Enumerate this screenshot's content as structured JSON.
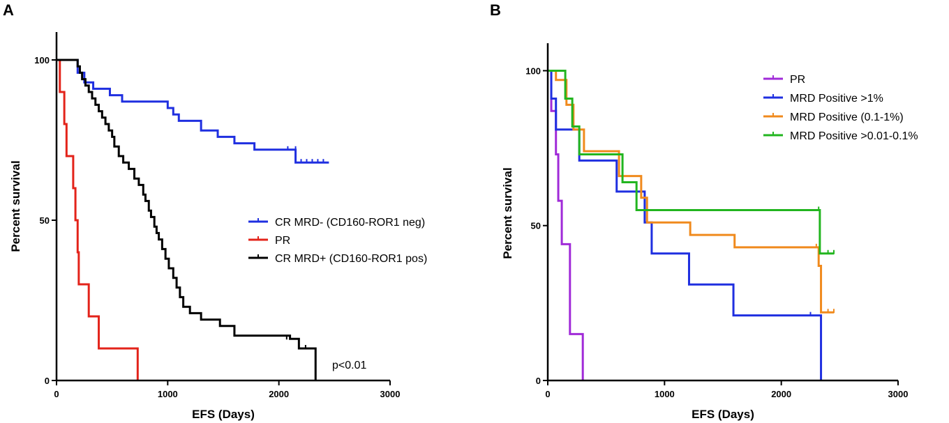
{
  "chart_data": [
    {
      "type": "line",
      "chart_kind": "kaplan-meier survival (step)",
      "panel": "A",
      "title": "",
      "xlabel": "EFS (Days)",
      "ylabel": "Percent survival",
      "xlim": [
        0,
        3000
      ],
      "ylim": [
        0,
        110
      ],
      "xticks": [
        0,
        1000,
        2000,
        3000
      ],
      "yticks": [
        0,
        50,
        100
      ],
      "xtick_labels": [
        "0",
        "1000",
        "2000",
        "3000"
      ],
      "ytick_labels": [
        "0",
        "50",
        "100"
      ],
      "legend_position": "right-middle",
      "annotation": "p<0.01",
      "series": [
        {
          "name": "CR MRD- (CD160-ROR1 neg)",
          "color": "#1f2fe0",
          "steps": [
            [
              0,
              100
            ],
            [
              190,
              96
            ],
            [
              250,
              93
            ],
            [
              330,
              91
            ],
            [
              480,
              89
            ],
            [
              590,
              87
            ],
            [
              1000,
              85
            ],
            [
              1050,
              83
            ],
            [
              1100,
              81
            ],
            [
              1300,
              78
            ],
            [
              1450,
              76
            ],
            [
              1600,
              74
            ],
            [
              1780,
              72
            ],
            [
              2150,
              68
            ],
            [
              2450,
              68
            ]
          ],
          "censored": [
            [
              2080,
              72
            ],
            [
              2150,
              72
            ],
            [
              2200,
              68
            ],
            [
              2250,
              68
            ],
            [
              2300,
              68
            ],
            [
              2350,
              68
            ],
            [
              2400,
              68
            ]
          ]
        },
        {
          "name": "PR",
          "color": "#e3231a",
          "steps": [
            [
              0,
              100
            ],
            [
              30,
              90
            ],
            [
              70,
              80
            ],
            [
              90,
              70
            ],
            [
              150,
              60
            ],
            [
              170,
              50
            ],
            [
              190,
              40
            ],
            [
              200,
              30
            ],
            [
              290,
              20
            ],
            [
              380,
              10
            ],
            [
              730,
              0
            ]
          ],
          "censored": []
        },
        {
          "name": "CR MRD+ (CD160-ROR1 pos)",
          "color": "#000000",
          "steps": [
            [
              0,
              100
            ],
            [
              190,
              98
            ],
            [
              210,
              96
            ],
            [
              230,
              94
            ],
            [
              260,
              92
            ],
            [
              290,
              90
            ],
            [
              320,
              88
            ],
            [
              350,
              86
            ],
            [
              380,
              84
            ],
            [
              410,
              82
            ],
            [
              440,
              80
            ],
            [
              470,
              78
            ],
            [
              500,
              76
            ],
            [
              520,
              73
            ],
            [
              560,
              70
            ],
            [
              600,
              68
            ],
            [
              650,
              66
            ],
            [
              700,
              63
            ],
            [
              740,
              61
            ],
            [
              780,
              58
            ],
            [
              800,
              56
            ],
            [
              830,
              53
            ],
            [
              850,
              51
            ],
            [
              880,
              48
            ],
            [
              900,
              46
            ],
            [
              920,
              44
            ],
            [
              950,
              41
            ],
            [
              980,
              38
            ],
            [
              1010,
              35
            ],
            [
              1050,
              32
            ],
            [
              1080,
              29
            ],
            [
              1110,
              26
            ],
            [
              1140,
              23
            ],
            [
              1200,
              21
            ],
            [
              1300,
              19
            ],
            [
              1470,
              17
            ],
            [
              1600,
              14
            ],
            [
              2100,
              13
            ],
            [
              2180,
              10
            ],
            [
              2330,
              0
            ]
          ],
          "censored": [
            [
              2070,
              13
            ],
            [
              2240,
              10
            ]
          ]
        }
      ]
    },
    {
      "type": "line",
      "chart_kind": "kaplan-meier survival (step)",
      "panel": "B",
      "title": "",
      "xlabel": "EFS (Days)",
      "ylabel": "Percent survival",
      "xlim": [
        0,
        3000
      ],
      "ylim": [
        0,
        110
      ],
      "xticks": [
        0,
        1000,
        2000,
        3000
      ],
      "yticks": [
        0,
        50,
        100
      ],
      "xtick_labels": [
        "0",
        "1000",
        "2000",
        "3000"
      ],
      "ytick_labels": [
        "0",
        "50",
        "100"
      ],
      "legend_position": "top-right",
      "series": [
        {
          "name": "PR",
          "color": "#a02ad8",
          "steps": [
            [
              0,
              100
            ],
            [
              30,
              87
            ],
            [
              70,
              73
            ],
            [
              90,
              58
            ],
            [
              120,
              44
            ],
            [
              190,
              15
            ],
            [
              300,
              0
            ]
          ],
          "censored": []
        },
        {
          "name": "MRD Positive >1%",
          "color": "#1f2fe0",
          "steps": [
            [
              0,
              100
            ],
            [
              30,
              91
            ],
            [
              70,
              81
            ],
            [
              270,
              71
            ],
            [
              590,
              61
            ],
            [
              830,
              51
            ],
            [
              890,
              41
            ],
            [
              1210,
              31
            ],
            [
              1590,
              21
            ],
            [
              2340,
              0
            ]
          ],
          "censored": [
            [
              2250,
              21
            ]
          ]
        },
        {
          "name": "MRD Positive (0.1-1%)",
          "color": "#f08a1d",
          "steps": [
            [
              0,
              100
            ],
            [
              70,
              97
            ],
            [
              160,
              89
            ],
            [
              220,
              81
            ],
            [
              310,
              74
            ],
            [
              610,
              66
            ],
            [
              800,
              59
            ],
            [
              850,
              51
            ],
            [
              1220,
              47
            ],
            [
              1600,
              43
            ],
            [
              2320,
              37
            ],
            [
              2340,
              22
            ],
            [
              2450,
              22
            ]
          ],
          "censored": [
            [
              2300,
              43
            ],
            [
              2400,
              22
            ],
            [
              2450,
              22
            ]
          ]
        },
        {
          "name": "MRD Positive >0.01-0.1%",
          "color": "#22b51f",
          "steps": [
            [
              0,
              100
            ],
            [
              150,
              91
            ],
            [
              210,
              82
            ],
            [
              270,
              73
            ],
            [
              640,
              64
            ],
            [
              760,
              55
            ],
            [
              2330,
              41
            ],
            [
              2450,
              41
            ]
          ],
          "censored": [
            [
              2320,
              55
            ],
            [
              2400,
              41
            ],
            [
              2450,
              41
            ]
          ]
        }
      ]
    }
  ],
  "panels": {
    "a": {
      "letter": "A",
      "xlabel": "EFS (Days)",
      "ylabel": "Percent survival",
      "annotation": "p<0.01"
    },
    "b": {
      "letter": "B",
      "xlabel": "EFS (Days)",
      "ylabel": "Percent survival"
    }
  }
}
